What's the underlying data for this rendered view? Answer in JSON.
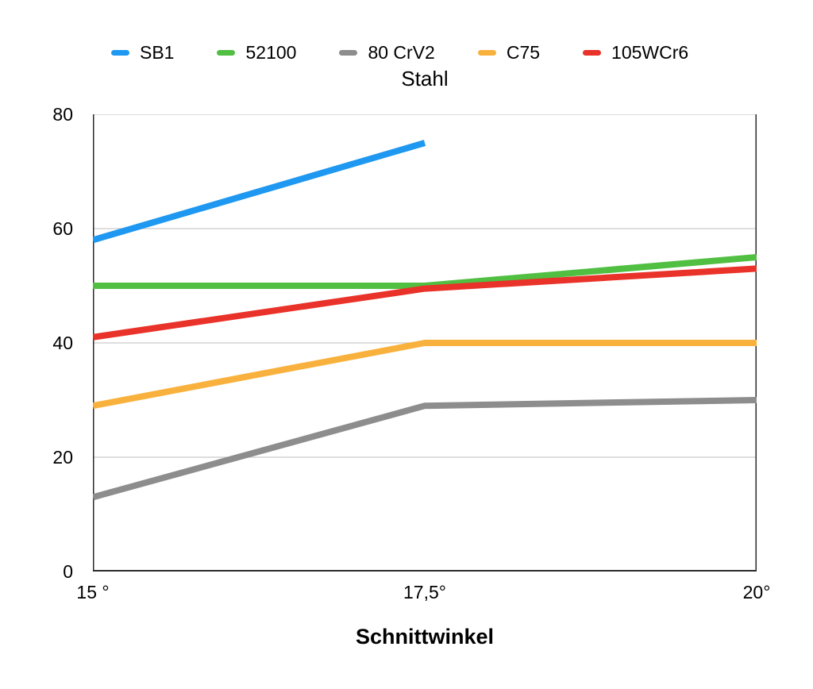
{
  "chart_data": {
    "type": "line",
    "title": "Stahl",
    "xlabel": "Schnittwinkel",
    "ylabel": "",
    "x": [
      15,
      17.5,
      20
    ],
    "x_tick_labels": [
      "15 °",
      "17,5°",
      "20°"
    ],
    "xlim": [
      15,
      20
    ],
    "y_ticks": [
      0,
      20,
      40,
      60,
      80
    ],
    "ylim": [
      0,
      80
    ],
    "grid": "horizontal",
    "legend_position": "top",
    "grid_color": "#C9C9C9",
    "axis_color": "#2B2B2B",
    "series": [
      {
        "name": "SB1",
        "color": "#1E98F0",
        "values": [
          58,
          75,
          null
        ]
      },
      {
        "name": "52100",
        "color": "#50BF42",
        "values": [
          50,
          50,
          55
        ]
      },
      {
        "name": "80 CrV2",
        "color": "#8D8D8D",
        "values": [
          13,
          29,
          30
        ]
      },
      {
        "name": "C75",
        "color": "#F9B13D",
        "values": [
          29,
          40,
          40
        ]
      },
      {
        "name": "105WCr6",
        "color": "#E93229",
        "values": [
          41,
          49.5,
          53
        ]
      }
    ]
  }
}
